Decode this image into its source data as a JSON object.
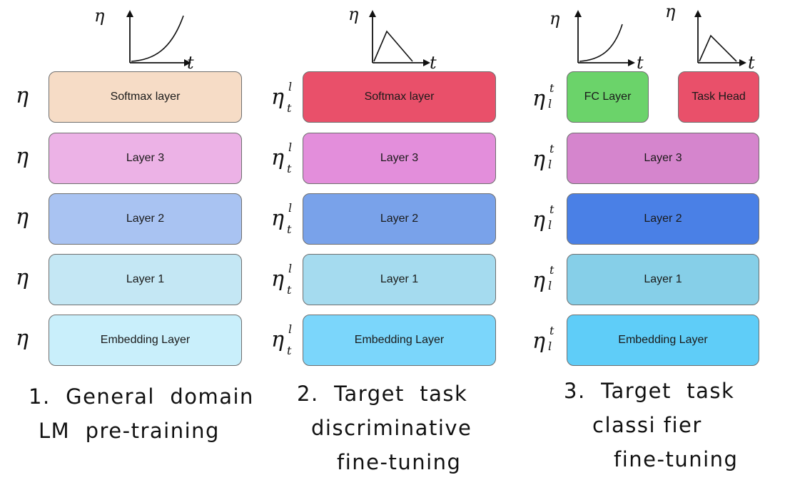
{
  "graph_labels": {
    "y": "η",
    "x": "t"
  },
  "lr_symbol": "η",
  "lr_sup_disc": "l",
  "lr_sub_disc": "t",
  "lr_sup_clf": "t",
  "lr_sub_clf": "l",
  "columns": [
    {
      "caption_line1": "1.  General  domain",
      "caption_line2": "LM  pre-training",
      "layers": {
        "top": "Softmax layer",
        "layer3": "Layer 3",
        "layer2": "Layer 2",
        "layer1": "Layer 1",
        "embedding": "Embedding Layer"
      },
      "colors": [
        "#f6dcc6",
        "#ecb2e6",
        "#a9c3f2",
        "#c4e7f4",
        "#c9effb"
      ]
    },
    {
      "caption_line1": "2.  Target  task",
      "caption_line2": "discriminative",
      "caption_line3": "fine-tuning",
      "layers": {
        "top": "Softmax layer",
        "layer3": "Layer 3",
        "layer2": "Layer 2",
        "layer1": "Layer 1",
        "embedding": "Embedding Layer"
      },
      "colors": [
        "#e9506a",
        "#e38edb",
        "#79a2ea",
        "#a5dbef",
        "#7bd6fb"
      ]
    },
    {
      "caption_line1": "3.  Target  task",
      "caption_line2": "classi fier",
      "caption_line3": "fine-tuning",
      "layers": {
        "fc": "FC Layer",
        "head": "Task Head",
        "layer3": "Layer 3",
        "layer2": "Layer 2",
        "layer1": "Layer 1",
        "embedding": "Embedding Layer"
      },
      "colors": [
        "#6bd36a",
        "#e9506a",
        "#d585cd",
        "#4a80e6",
        "#86cfe8",
        "#5fcdf8"
      ]
    }
  ]
}
